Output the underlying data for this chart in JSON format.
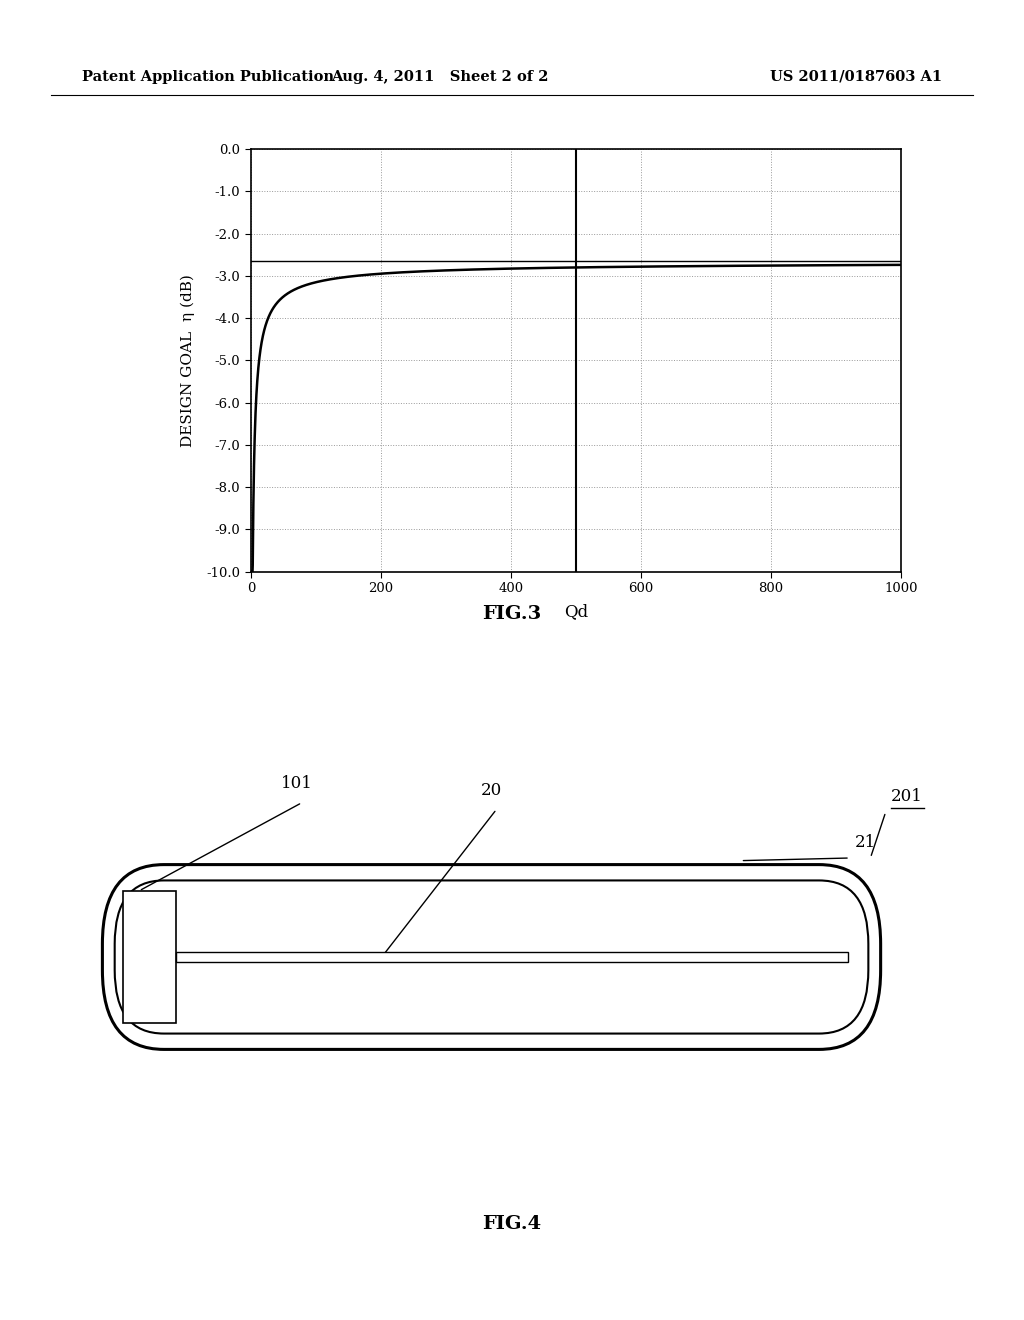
{
  "header_left": "Patent Application Publication",
  "header_mid": "Aug. 4, 2011   Sheet 2 of 2",
  "header_right": "US 2011/0187603 A1",
  "fig3_label": "FIG.3",
  "fig4_label": "FIG.4",
  "graph": {
    "xlabel": "Qd",
    "ylabel": "DESIGN GOAL  η (dB)",
    "xlim": [
      0,
      1000
    ],
    "ylim": [
      -10.0,
      0.0
    ],
    "ytick_vals": [
      0.0,
      -1.0,
      -2.0,
      -3.0,
      -4.0,
      -5.0,
      -6.0,
      -7.0,
      -8.0,
      -9.0,
      -10.0
    ],
    "ytick_labels": [
      "0.0",
      "-1.0",
      "-2.0",
      "-3.0",
      "-4.0",
      "-5.0",
      "-6.0",
      "-7.0",
      "-8.0",
      "-9.0",
      "-10.0"
    ],
    "xtick_vals": [
      0,
      200,
      400,
      600,
      800,
      1000
    ],
    "xtick_labels": [
      "0",
      "200",
      "400",
      "600",
      "800",
      "1000"
    ],
    "curve_color": "#000000",
    "grid_color": "#999999",
    "vline_x": 500,
    "hline_y": -2.65,
    "asymptote_y": -2.65,
    "curve_k": 15.68,
    "curve_p": 0.748
  },
  "device": {
    "label_101": "101",
    "label_20": "20",
    "label_21": "21",
    "label_201": "201"
  },
  "bg_color": "#ffffff",
  "text_color": "#000000"
}
